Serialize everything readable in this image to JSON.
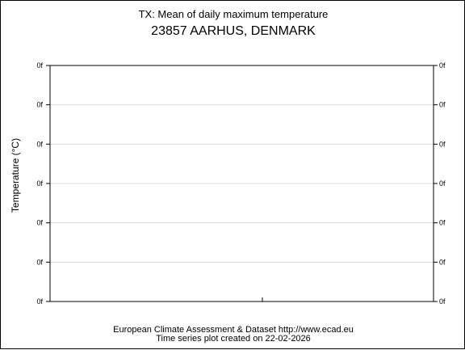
{
  "chart_data": {
    "type": "line",
    "title": "TX: Mean of daily maximum temperature",
    "subtitle": "23857 AARHUS, DENMARK",
    "ylabel": "Temperature (°C)",
    "xlabel": "",
    "y_tick_labels": [
      "0f",
      "0f",
      "0f",
      "0f",
      "0f",
      "0f",
      "0f"
    ],
    "grid": true,
    "series": []
  },
  "footer": {
    "line1": "European Climate Assessment & Dataset  http://www.ecad.eu",
    "line2": "Time series plot created on 22-02-2026"
  },
  "colors": {
    "axis": "#000000",
    "grid": "#d9d9d9",
    "background": "#ffffff"
  }
}
